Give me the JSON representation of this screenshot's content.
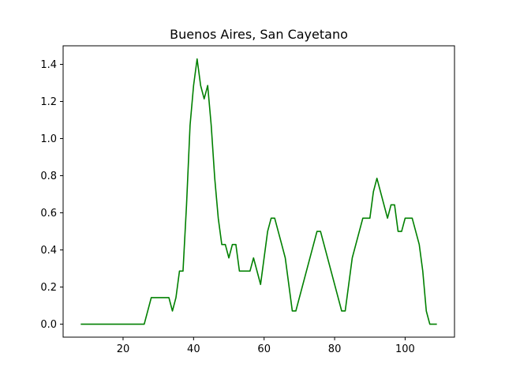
{
  "chart_data": {
    "type": "line",
    "title": "Buenos Aires, San Cayetano",
    "xlabel": "",
    "ylabel": "",
    "xlim": [
      3,
      114
    ],
    "ylim": [
      -0.07,
      1.5
    ],
    "grid": false,
    "line_color": "#008000",
    "xticks": [
      20,
      40,
      60,
      80,
      100
    ],
    "yticks": [
      0.0,
      0.2,
      0.4,
      0.6,
      0.8,
      1.0,
      1.2,
      1.4
    ],
    "series": [
      {
        "x": [
          8,
          26,
          28,
          33,
          34,
          35,
          36,
          37,
          38,
          39,
          40,
          41,
          42,
          43,
          44,
          45,
          46,
          47,
          48,
          49,
          50,
          51,
          52,
          53,
          56,
          57,
          59,
          60,
          61,
          62,
          63,
          65,
          66,
          67,
          68,
          69,
          75,
          76,
          82,
          83,
          85,
          88,
          90,
          91,
          92,
          95,
          96,
          97,
          98,
          99,
          100,
          102,
          104,
          105,
          106,
          107,
          109
        ],
        "y": [
          0,
          0,
          0.143,
          0.143,
          0.071,
          0.143,
          0.286,
          0.286,
          0.643,
          1.071,
          1.286,
          1.429,
          1.286,
          1.214,
          1.286,
          1.071,
          0.786,
          0.571,
          0.429,
          0.429,
          0.357,
          0.429,
          0.429,
          0.286,
          0.286,
          0.357,
          0.214,
          0.357,
          0.5,
          0.571,
          0.571,
          0.429,
          0.357,
          0.214,
          0.071,
          0.071,
          0.5,
          0.5,
          0.071,
          0.071,
          0.357,
          0.571,
          0.571,
          0.714,
          0.786,
          0.571,
          0.643,
          0.643,
          0.5,
          0.5,
          0.571,
          0.571,
          0.429,
          0.286,
          0.071,
          0,
          0
        ]
      }
    ]
  }
}
